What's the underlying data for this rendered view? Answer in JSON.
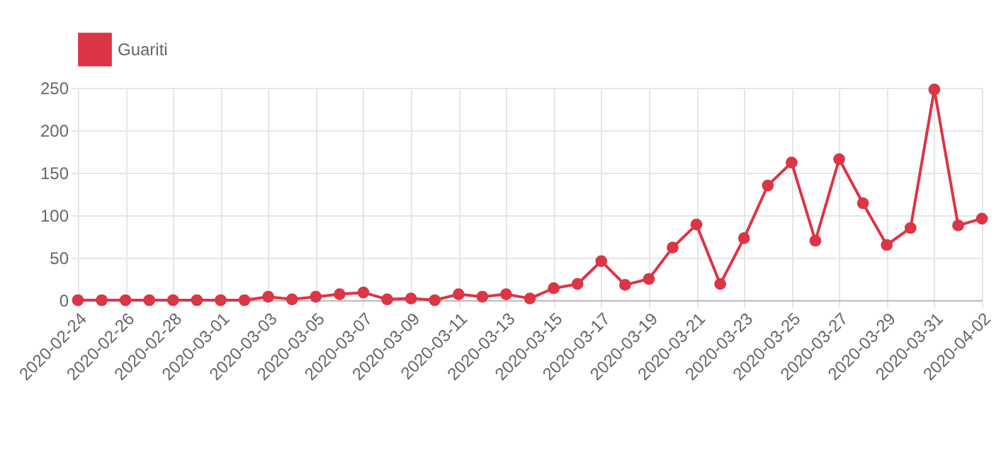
{
  "chart_data": {
    "type": "line",
    "categories": [
      "2020-02-24",
      null,
      "2020-02-26",
      null,
      "2020-02-28",
      null,
      "2020-03-01",
      null,
      "2020-03-03",
      null,
      "2020-03-05",
      null,
      "2020-03-07",
      null,
      "2020-03-09",
      null,
      "2020-03-11",
      null,
      "2020-03-13",
      null,
      "2020-03-15",
      null,
      "2020-03-17",
      null,
      "2020-03-19",
      null,
      "2020-03-21",
      null,
      "2020-03-23",
      null,
      "2020-03-25",
      null,
      "2020-03-27",
      null,
      "2020-03-29",
      null,
      "2020-03-31",
      null,
      "2020-04-02"
    ],
    "series": [
      {
        "name": "Guariti",
        "color": "#dc3545",
        "values": [
          0,
          0,
          0,
          0,
          0,
          0,
          0,
          0,
          4,
          1,
          4,
          7,
          9,
          1,
          2,
          0,
          7,
          4,
          7,
          2,
          14,
          19,
          46,
          18,
          25,
          62,
          89,
          19,
          73,
          135,
          162,
          70,
          166,
          114,
          65,
          85,
          248,
          88,
          96
        ]
      }
    ],
    "ylim": [
      0,
      250
    ],
    "yticks": [
      0,
      50,
      100,
      150,
      200,
      250
    ],
    "grid": true,
    "legend": "top",
    "marker": "circle",
    "line_style": "solid"
  }
}
